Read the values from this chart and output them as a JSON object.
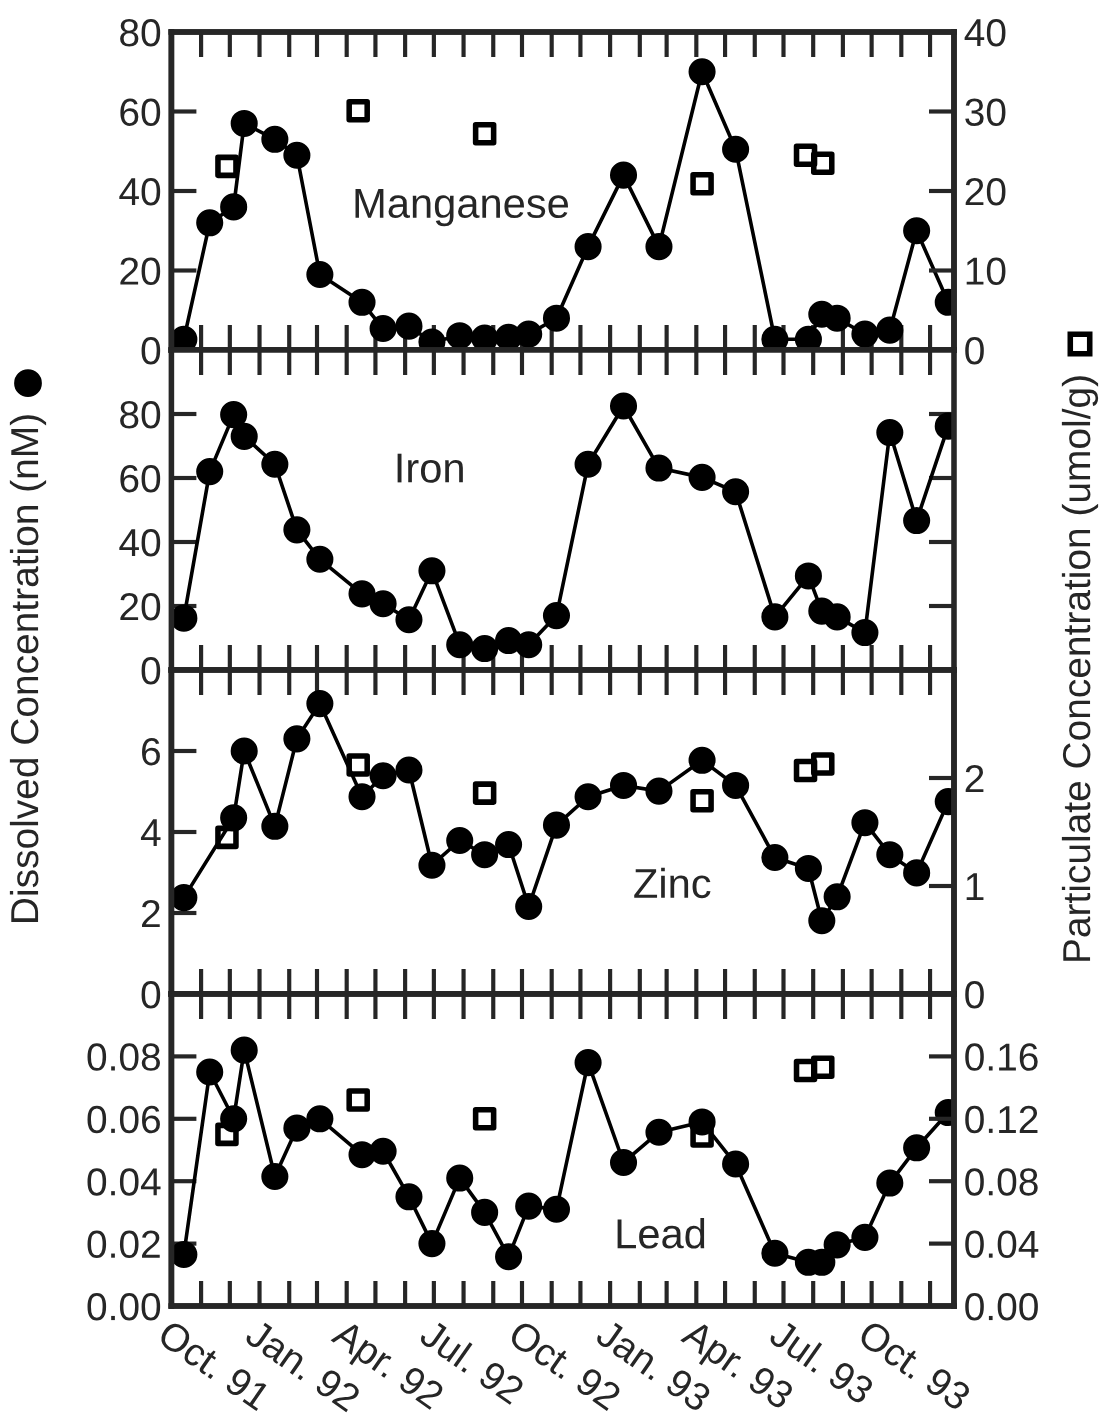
{
  "chart_data": [
    {
      "type": "line",
      "title": "Manganese",
      "ylabel": "Dissolved Concentration (nM)",
      "y2label": "Particulate Concentration (umol/g)",
      "tick_labels": "y",
      "x": [
        "1991-10-14",
        "1991-11-10",
        "1991-12-05",
        "1991-12-16",
        "1992-01-17",
        "1992-02-09",
        "1992-03-04",
        "1992-04-17",
        "1992-05-09",
        "1992-06-05",
        "1992-06-29",
        "1992-07-28",
        "1992-08-23",
        "1992-09-17",
        "1992-10-08",
        "1992-11-06",
        "1992-12-09",
        "1993-01-15",
        "1993-02-21",
        "1993-04-07",
        "1993-05-12",
        "1993-06-22",
        "1993-07-27",
        "1993-08-10",
        "1993-08-26",
        "1993-09-24",
        "1993-10-20",
        "1993-11-17",
        "1993-12-20"
      ],
      "series": [
        {
          "color": "#000000",
          "marker": "circle",
          "line_style": "solid",
          "values": [
            2.7,
            32,
            36,
            57,
            53,
            49,
            19,
            12,
            5.4,
            6,
            2,
            3.6,
            3,
            3.2,
            4,
            8,
            26,
            44,
            26,
            70,
            50.5,
            2.7,
            2.7,
            9,
            8,
            4,
            5,
            30,
            12
          ]
        },
        {
          "type": "scatter",
          "color": "#000000",
          "marker": "square",
          "axis": "y2",
          "x": [
            "1991-11-28",
            "1992-04-13",
            "1992-08-23",
            "1993-04-07",
            "1993-07-24",
            "1993-08-11"
          ],
          "values": [
            23.1,
            30.1,
            27.2,
            20.9,
            24.5,
            23.5
          ]
        }
      ],
      "xlim": [
        "1991-10-01",
        "1993-12-26"
      ],
      "xticks": [
        "1991-10-01",
        "1991-11-01",
        "1991-12-01",
        "1992-01-01",
        "1992-02-01",
        "1992-03-01",
        "1992-04-01",
        "1992-05-01",
        "1992-06-01",
        "1992-07-01",
        "1992-08-01",
        "1992-09-01",
        "1992-10-01",
        "1992-11-01",
        "1992-12-01",
        "1993-01-01",
        "1993-02-01",
        "1993-03-01",
        "1993-04-01",
        "1993-05-01",
        "1993-06-01",
        "1993-07-01",
        "1993-08-01",
        "1993-09-01",
        "1993-10-01",
        "1993-11-01",
        "1993-12-01"
      ],
      "ylim": [
        0,
        80
      ],
      "yticks": [
        0,
        20,
        40,
        60,
        80
      ],
      "y2lim": [
        0,
        40
      ],
      "y2ticks": [
        0,
        10,
        20,
        30,
        40
      ],
      "grid": false,
      "legend": false
    },
    {
      "type": "line",
      "title": "Iron",
      "tick_labels": "y",
      "x": [
        "1991-10-14",
        "1991-11-10",
        "1991-12-05",
        "1991-12-16",
        "1992-01-17",
        "1992-02-09",
        "1992-03-04",
        "1992-04-17",
        "1992-05-09",
        "1992-06-05",
        "1992-06-29",
        "1992-07-28",
        "1992-08-23",
        "1992-09-17",
        "1992-10-08",
        "1992-11-06",
        "1992-12-09",
        "1993-01-15",
        "1993-02-21",
        "1993-04-07",
        "1993-05-12",
        "1993-06-22",
        "1993-07-27",
        "1993-08-10",
        "1993-08-26",
        "1993-09-24",
        "1993-10-20",
        "1993-11-17",
        "1993-12-20"
      ],
      "series": [
        {
          "color": "#000000",
          "marker": "circle",
          "line_style": "solid",
          "values": [
            16.2,
            62,
            79.8,
            73,
            64.3,
            43.8,
            34.6,
            23.8,
            20.7,
            15.7,
            31,
            7.9,
            6.7,
            9.2,
            7.9,
            17,
            64.3,
            82.5,
            63.1,
            60.2,
            55.7,
            16.6,
            29.4,
            18.4,
            16.6,
            11.7,
            74.2,
            46.7,
            76.2
          ]
        }
      ],
      "xlim": [
        "1991-10-01",
        "1993-12-26"
      ],
      "xticks": [
        "1991-10-01",
        "1991-11-01",
        "1991-12-01",
        "1992-01-01",
        "1992-02-01",
        "1992-03-01",
        "1992-04-01",
        "1992-05-01",
        "1992-06-01",
        "1992-07-01",
        "1992-08-01",
        "1992-09-01",
        "1992-10-01",
        "1992-11-01",
        "1992-12-01",
        "1993-01-01",
        "1993-02-01",
        "1993-03-01",
        "1993-04-01",
        "1993-05-01",
        "1993-06-01",
        "1993-07-01",
        "1993-08-01",
        "1993-09-01",
        "1993-10-01",
        "1993-11-01",
        "1993-12-01"
      ],
      "ylim": [
        0,
        100
      ],
      "yticks": [
        0,
        20,
        40,
        60,
        80
      ],
      "grid": false,
      "legend": false
    },
    {
      "type": "line",
      "title": "Zinc",
      "tick_labels": "y",
      "series": [
        {
          "color": "#000000",
          "marker": "circle",
          "line_style": "solid",
          "x": [
            "1991-10-14",
            "1991-12-05",
            "1991-12-16",
            "1992-01-17",
            "1992-02-09",
            "1992-03-04",
            "1992-04-17",
            "1992-05-09",
            "1992-06-05",
            "1992-06-29",
            "1992-07-28",
            "1992-08-23",
            "1992-09-17",
            "1992-10-08",
            "1992-11-06",
            "1992-12-09",
            "1993-01-15",
            "1993-02-21",
            "1993-04-07",
            "1993-05-12",
            "1993-06-22",
            "1993-07-27",
            "1993-08-10",
            "1993-08-26",
            "1993-09-24",
            "1993-10-20",
            "1993-11-17",
            "1993-12-20"
          ],
          "values": [
            2.38,
            4.35,
            6.0,
            4.14,
            6.3,
            7.17,
            4.87,
            5.39,
            5.53,
            3.18,
            3.79,
            3.44,
            3.69,
            2.16,
            4.17,
            4.87,
            5.15,
            5.01,
            5.77,
            5.15,
            3.37,
            3.1,
            1.81,
            2.4,
            4.23,
            3.44,
            2.99,
            4.75
          ]
        },
        {
          "type": "scatter",
          "color": "#000000",
          "marker": "square",
          "axis": "y2",
          "x": [
            "1991-11-28",
            "1992-04-13",
            "1992-08-23",
            "1993-04-07",
            "1993-07-24",
            "1993-08-11"
          ],
          "values": [
            1.45,
            2.12,
            1.86,
            1.79,
            2.07,
            2.13
          ]
        }
      ],
      "xlim": [
        "1991-10-01",
        "1993-12-26"
      ],
      "xticks": [
        "1991-10-01",
        "1991-11-01",
        "1991-12-01",
        "1992-01-01",
        "1992-02-01",
        "1992-03-01",
        "1992-04-01",
        "1992-05-01",
        "1992-06-01",
        "1992-07-01",
        "1992-08-01",
        "1992-09-01",
        "1992-10-01",
        "1992-11-01",
        "1992-12-01",
        "1993-01-01",
        "1993-02-01",
        "1993-03-01",
        "1993-04-01",
        "1993-05-01",
        "1993-06-01",
        "1993-07-01",
        "1993-08-01",
        "1993-09-01",
        "1993-10-01",
        "1993-11-01",
        "1993-12-01"
      ],
      "ylim": [
        0,
        8
      ],
      "yticks": [
        0,
        2,
        4,
        6
      ],
      "y2lim": [
        0,
        3
      ],
      "y2ticks": [
        0,
        1,
        2
      ],
      "grid": false,
      "legend": false
    },
    {
      "type": "line",
      "title": "Lead",
      "x": [
        "1991-10-14",
        "1991-11-10",
        "1991-12-05",
        "1991-12-16",
        "1992-01-17",
        "1992-02-09",
        "1992-03-04",
        "1992-04-17",
        "1992-05-09",
        "1992-06-05",
        "1992-06-29",
        "1992-07-28",
        "1992-08-23",
        "1992-09-17",
        "1992-10-08",
        "1992-11-06",
        "1992-12-09",
        "1993-01-15",
        "1993-02-21",
        "1993-04-07",
        "1993-05-12",
        "1993-06-22",
        "1993-07-27",
        "1993-08-10",
        "1993-08-26",
        "1993-09-24",
        "1993-10-20",
        "1993-11-17",
        "1993-12-20"
      ],
      "series": [
        {
          "color": "#000000",
          "marker": "circle",
          "line_style": "solid",
          "values": [
            0.0165,
            0.075,
            0.06,
            0.082,
            0.0415,
            0.057,
            0.06,
            0.0485,
            0.0496,
            0.035,
            0.02,
            0.041,
            0.03,
            0.0158,
            0.032,
            0.031,
            0.078,
            0.046,
            0.0557,
            0.059,
            0.0455,
            0.0169,
            0.014,
            0.014,
            0.0196,
            0.022,
            0.0394,
            0.0507,
            0.062
          ]
        },
        {
          "type": "scatter",
          "color": "#000000",
          "marker": "square",
          "axis": "y2",
          "x": [
            "1991-11-28",
            "1992-04-13",
            "1992-08-23",
            "1993-04-07",
            "1993-07-24",
            "1993-08-11"
          ],
          "values": [
            0.11,
            0.132,
            0.12,
            0.109,
            0.151,
            0.153
          ]
        }
      ],
      "xlim": [
        "1991-10-01",
        "1993-12-26"
      ],
      "xticks": [
        {
          "value": "1991-10-01",
          "label": "Oct. 91"
        },
        {
          "value": "1991-11-01",
          "label": null
        },
        {
          "value": "1991-12-01",
          "label": null
        },
        {
          "value": "1992-01-01",
          "label": "Jan. 92"
        },
        {
          "value": "1992-02-01",
          "label": null
        },
        {
          "value": "1992-03-01",
          "label": null
        },
        {
          "value": "1992-04-01",
          "label": "Apr. 92"
        },
        {
          "value": "1992-05-01",
          "label": null
        },
        {
          "value": "1992-06-01",
          "label": null
        },
        {
          "value": "1992-07-01",
          "label": "Jul. 92"
        },
        {
          "value": "1992-08-01",
          "label": null
        },
        {
          "value": "1992-09-01",
          "label": null
        },
        {
          "value": "1992-10-01",
          "label": "Oct. 92"
        },
        {
          "value": "1992-11-01",
          "label": null
        },
        {
          "value": "1992-12-01",
          "label": null
        },
        {
          "value": "1993-01-01",
          "label": "Jan. 93"
        },
        {
          "value": "1993-02-01",
          "label": null
        },
        {
          "value": "1993-03-01",
          "label": null
        },
        {
          "value": "1993-04-01",
          "label": "Apr. 93"
        },
        {
          "value": "1993-05-01",
          "label": null
        },
        {
          "value": "1993-06-01",
          "label": null
        },
        {
          "value": "1993-07-01",
          "label": "Jul. 93"
        },
        {
          "value": "1993-08-01",
          "label": null
        },
        {
          "value": "1993-09-01",
          "label": null
        },
        {
          "value": "1993-10-01",
          "label": "Oct. 93"
        },
        {
          "value": "1993-11-01",
          "label": null
        },
        {
          "value": "1993-12-01",
          "label": null
        }
      ],
      "ylim": [
        0,
        0.1
      ],
      "yticks": [
        {
          "value": 0,
          "label": "0.00"
        },
        {
          "value": 0.02,
          "label": "0.02"
        },
        {
          "value": 0.04,
          "label": "0.04"
        },
        {
          "value": 0.06,
          "label": "0.06"
        },
        {
          "value": 0.08,
          "label": "0.08"
        }
      ],
      "y2lim": [
        0,
        0.2
      ],
      "y2ticks": [
        {
          "value": 0,
          "label": "0.00"
        },
        {
          "value": 0.04,
          "label": "0.04"
        },
        {
          "value": 0.08,
          "label": "0.08"
        },
        {
          "value": 0.12,
          "label": "0.12"
        },
        {
          "value": 0.16,
          "label": "0.16"
        }
      ],
      "grid": false,
      "legend": false
    }
  ]
}
